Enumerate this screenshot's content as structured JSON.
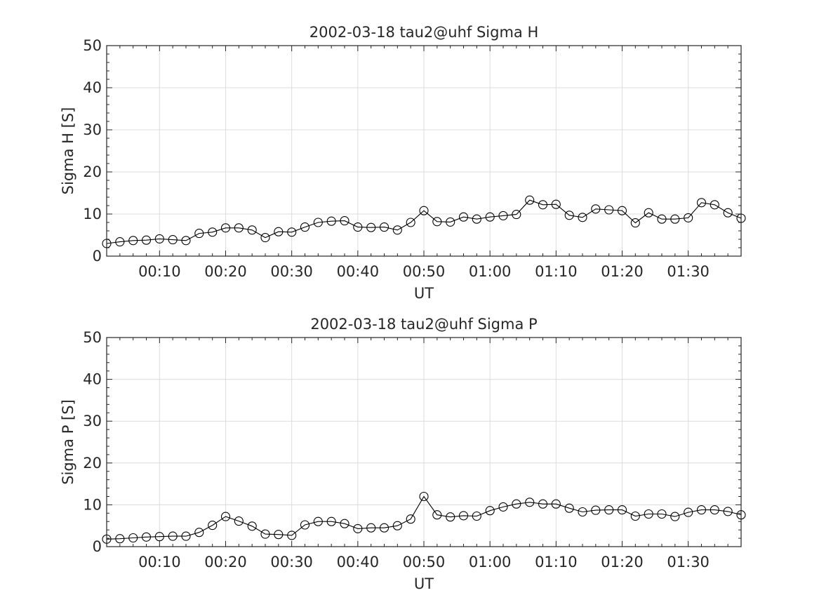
{
  "chart_data": [
    {
      "type": "line",
      "title": "2002-03-18  tau2@uhf Sigma H",
      "xlabel": "UT",
      "ylabel": "Sigma H [S]",
      "ylim": [
        0,
        50
      ],
      "yticks": [
        0,
        10,
        20,
        30,
        40,
        50
      ],
      "xlim_minutes": [
        2,
        98
      ],
      "xticks": [
        "00:10",
        "00:20",
        "00:30",
        "00:40",
        "00:50",
        "01:00",
        "01:10",
        "01:20",
        "01:30"
      ],
      "grid": true,
      "marker": "open-circle",
      "x": [
        "00:02",
        "00:04",
        "00:06",
        "00:08",
        "00:10",
        "00:12",
        "00:14",
        "00:16",
        "00:18",
        "00:20",
        "00:22",
        "00:24",
        "00:26",
        "00:28",
        "00:30",
        "00:32",
        "00:34",
        "00:36",
        "00:38",
        "00:40",
        "00:42",
        "00:44",
        "00:46",
        "00:48",
        "00:50",
        "00:52",
        "00:54",
        "00:56",
        "00:58",
        "01:00",
        "01:02",
        "01:04",
        "01:06",
        "01:08",
        "01:10",
        "01:12",
        "01:14",
        "01:16",
        "01:18",
        "01:20",
        "01:22",
        "01:24",
        "01:26",
        "01:28",
        "01:30",
        "01:32",
        "01:34",
        "01:36",
        "01:38"
      ],
      "values": [
        3.0,
        3.4,
        3.7,
        3.8,
        4.1,
        3.9,
        3.7,
        5.4,
        5.7,
        6.7,
        6.7,
        6.2,
        4.4,
        5.8,
        5.7,
        6.9,
        8.0,
        8.3,
        8.4,
        6.9,
        6.8,
        6.9,
        6.2,
        8.0,
        10.8,
        8.2,
        8.1,
        9.3,
        8.8,
        9.3,
        9.6,
        9.9,
        13.3,
        12.2,
        12.3,
        9.7,
        9.2,
        11.2,
        11.0,
        10.8,
        7.9,
        10.3,
        8.8,
        8.8,
        9.1,
        12.7,
        12.2,
        10.3,
        9.0
      ]
    },
    {
      "type": "line",
      "title": "2002-03-18  tau2@uhf Sigma P",
      "xlabel": "UT",
      "ylabel": "Sigma P [S]",
      "ylim": [
        0,
        50
      ],
      "yticks": [
        0,
        10,
        20,
        30,
        40,
        50
      ],
      "xlim_minutes": [
        2,
        98
      ],
      "xticks": [
        "00:10",
        "00:20",
        "00:30",
        "00:40",
        "00:50",
        "01:00",
        "01:10",
        "01:20",
        "01:30"
      ],
      "grid": true,
      "marker": "open-circle",
      "x": [
        "00:02",
        "00:04",
        "00:06",
        "00:08",
        "00:10",
        "00:12",
        "00:14",
        "00:16",
        "00:18",
        "00:20",
        "00:22",
        "00:24",
        "00:26",
        "00:28",
        "00:30",
        "00:32",
        "00:34",
        "00:36",
        "00:38",
        "00:40",
        "00:42",
        "00:44",
        "00:46",
        "00:48",
        "00:50",
        "00:52",
        "00:54",
        "00:56",
        "00:58",
        "01:00",
        "01:02",
        "01:04",
        "01:06",
        "01:08",
        "01:10",
        "01:12",
        "01:14",
        "01:16",
        "01:18",
        "01:20",
        "01:22",
        "01:24",
        "01:26",
        "01:28",
        "01:30",
        "01:32",
        "01:34",
        "01:36",
        "01:38"
      ],
      "values": [
        1.8,
        1.9,
        2.1,
        2.3,
        2.4,
        2.5,
        2.5,
        3.4,
        5.1,
        7.2,
        6.1,
        4.9,
        3.0,
        2.9,
        2.7,
        5.2,
        6.0,
        6.0,
        5.5,
        4.3,
        4.5,
        4.5,
        5.0,
        6.6,
        12.0,
        7.6,
        7.1,
        7.4,
        7.3,
        8.6,
        9.5,
        10.2,
        10.6,
        10.2,
        10.2,
        9.2,
        8.3,
        8.7,
        8.8,
        8.8,
        7.3,
        7.8,
        7.8,
        7.2,
        8.2,
        8.8,
        8.8,
        8.4,
        7.6
      ]
    }
  ]
}
